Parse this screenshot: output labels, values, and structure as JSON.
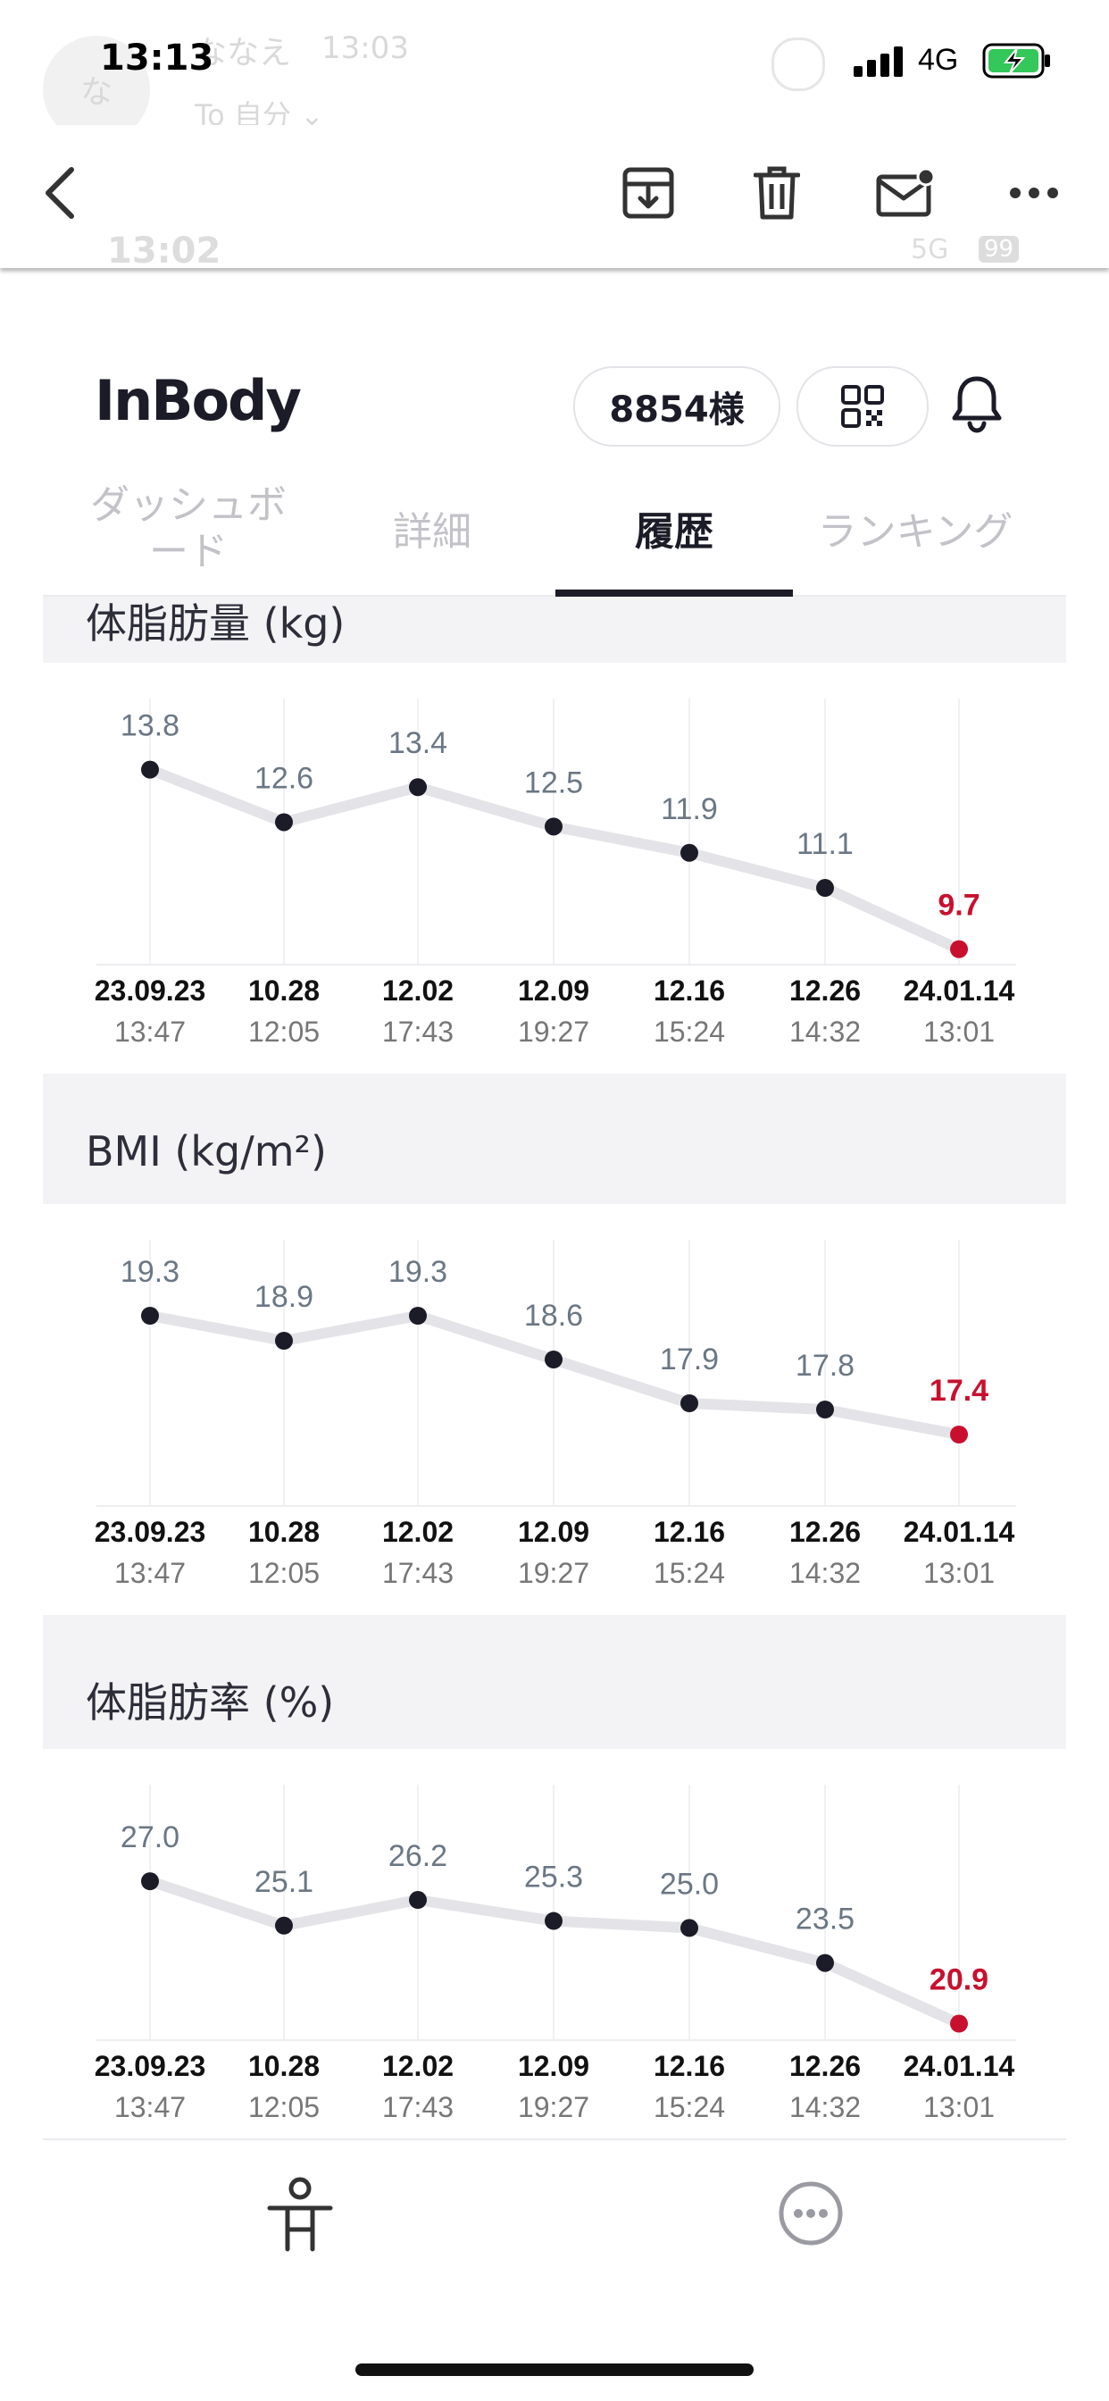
{
  "status_bar": {
    "time": "13:13",
    "network": "4G"
  },
  "background_email": {
    "sender": "ななえ",
    "time": "13:03",
    "recipient": "To 自分 ⌄",
    "avatar_letter": "な",
    "underlay_time": "13:02",
    "underlay_net": "5G",
    "underlay_batt": "99"
  },
  "mail_toolbar": {
    "icons": [
      "back-icon",
      "archive-icon",
      "trash-icon",
      "mark-unread-icon",
      "more-icon"
    ]
  },
  "app": {
    "logo": "InBody",
    "member_pill": "8854様",
    "tabs": [
      {
        "label": "ダッシュボード",
        "active": false
      },
      {
        "label": "詳細",
        "active": false
      },
      {
        "label": "履歴",
        "active": true
      },
      {
        "label": "ランキング",
        "active": false
      }
    ]
  },
  "colors": {
    "accent": "#c8102e",
    "point": "#1c1c28",
    "line": "#e4e4e8",
    "section_bg": "#f3f3f5"
  },
  "sections": [
    {
      "title": "体脂肪量 (kg)"
    },
    {
      "title": "BMI (kg/m²)"
    },
    {
      "title": "体脂肪率 (%)"
    }
  ],
  "chart_data": [
    {
      "type": "line",
      "title": "体脂肪量 (kg)",
      "categories": [
        "23.09.23",
        "10.28",
        "12.02",
        "12.09",
        "12.16",
        "12.26",
        "24.01.14"
      ],
      "subcategories": [
        "13:47",
        "12:05",
        "17:43",
        "19:27",
        "15:24",
        "14:32",
        "13:01"
      ],
      "values": [
        13.8,
        12.6,
        13.4,
        12.5,
        11.9,
        11.1,
        9.7
      ],
      "labels": [
        "13.8",
        "12.6",
        "13.4",
        "12.5",
        "11.9",
        "11.1",
        "9.7"
      ],
      "ylim": [
        9.0,
        14.2
      ],
      "highlight_last": true
    },
    {
      "type": "line",
      "title": "BMI (kg/m²)",
      "categories": [
        "23.09.23",
        "10.28",
        "12.02",
        "12.09",
        "12.16",
        "12.26",
        "24.01.14"
      ],
      "subcategories": [
        "13:47",
        "12:05",
        "17:43",
        "19:27",
        "15:24",
        "14:32",
        "13:01"
      ],
      "values": [
        19.3,
        18.9,
        19.3,
        18.6,
        17.9,
        17.8,
        17.4
      ],
      "labels": [
        "19.3",
        "18.9",
        "19.3",
        "18.6",
        "17.9",
        "17.8",
        "17.4"
      ],
      "ylim": [
        17.2,
        19.6
      ],
      "highlight_last": true
    },
    {
      "type": "line",
      "title": "体脂肪率 (%)",
      "categories": [
        "23.09.23",
        "10.28",
        "12.02",
        "12.09",
        "12.16",
        "12.26",
        "24.01.14"
      ],
      "subcategories": [
        "13:47",
        "12:05",
        "17:43",
        "19:27",
        "15:24",
        "14:32",
        "13:01"
      ],
      "values": [
        27.0,
        25.1,
        26.2,
        25.3,
        25.0,
        23.5,
        20.9
      ],
      "labels": [
        "27.0",
        "25.1",
        "26.2",
        "25.3",
        "25.0",
        "23.5",
        "20.9"
      ],
      "ylim": [
        20.5,
        28.0
      ],
      "highlight_last": true
    }
  ],
  "bottom_nav": {
    "icons": [
      "body-figure-icon",
      "more-circle-icon"
    ]
  }
}
